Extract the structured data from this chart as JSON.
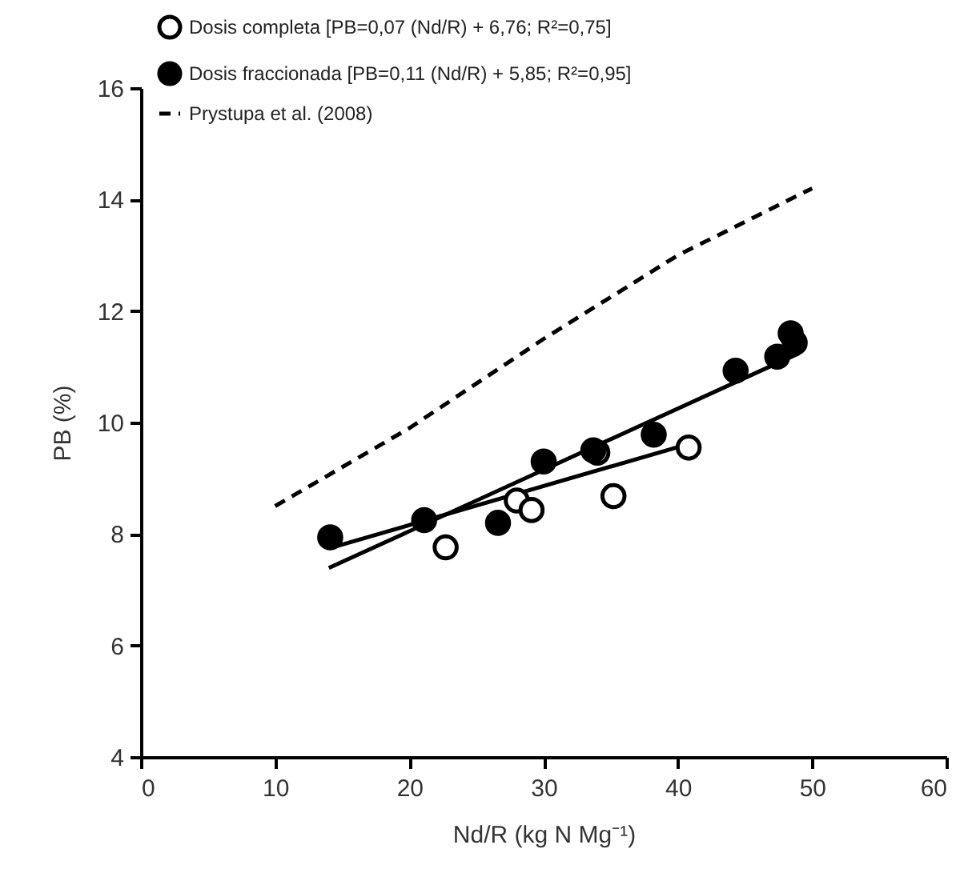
{
  "chart_data": {
    "type": "scatter",
    "xlabel": "Nd/R (kg N Mg⁻¹)",
    "ylabel": "PB (%)",
    "xlim": [
      0,
      60
    ],
    "xticks": [
      0,
      10,
      20,
      30,
      40,
      50,
      60
    ],
    "ylim": [
      4,
      16
    ],
    "yticks": [
      4,
      6,
      8,
      10,
      12,
      14,
      16
    ],
    "grid": false,
    "legend": "top left",
    "series": [
      {
        "name": "Dosis completa [PB=0,07 (Nd/R) + 6,76; R²=0,75]",
        "marker": "circle",
        "color": "#ffffff",
        "x": [
          22.7,
          28.0,
          29.1,
          34.0,
          35.2,
          40.8
        ],
        "values": [
          7.76,
          8.6,
          8.43,
          9.46,
          8.68,
          9.55
        ]
      },
      {
        "name": "Dosis fraccionada [PB=0,11 (Nd/R) + 5,85; R²=0,95]",
        "marker": "circle",
        "color": "#000000",
        "x": [
          14.1,
          21.1,
          26.6,
          30.0,
          33.7,
          38.2,
          44.3,
          47.4,
          48.4,
          48.7
        ],
        "values": [
          7.94,
          8.25,
          8.2,
          9.3,
          9.5,
          9.78,
          10.93,
          11.18,
          11.6,
          11.43
        ]
      },
      {
        "name": "Prystupa et al. (2008)",
        "type": "line",
        "line_style": "dashed",
        "color": "#000000",
        "x": [
          10,
          20,
          30,
          40,
          50
        ],
        "values": [
          8.5,
          9.9,
          11.5,
          13.0,
          14.2
        ]
      },
      {
        "type": "line",
        "color": "#000000",
        "x": [
          14,
          41
        ],
        "values": [
          7.74,
          9.63
        ]
      },
      {
        "type": "line",
        "color": "#000000",
        "x": [
          14,
          49
        ],
        "values": [
          7.39,
          11.24
        ]
      }
    ]
  }
}
